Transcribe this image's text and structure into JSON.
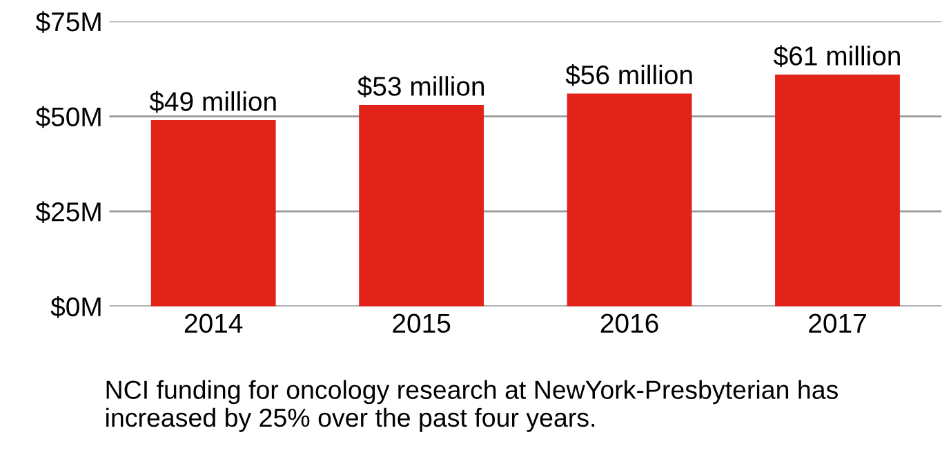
{
  "chart_data": {
    "type": "bar",
    "categories": [
      "2014",
      "2015",
      "2016",
      "2017"
    ],
    "values": [
      49,
      53,
      56,
      61
    ],
    "value_labels": [
      "$49 million",
      "$53 million",
      "$56 million",
      "$61 million"
    ],
    "color": "#e2231a",
    "ylim": [
      0,
      75
    ],
    "yticks": [
      {
        "value": 0,
        "label": "$0M"
      },
      {
        "value": 25,
        "label": "$25M"
      },
      {
        "value": 50,
        "label": "$50M"
      },
      {
        "value": 75,
        "label": "$75M"
      }
    ],
    "grid": "y",
    "annotations": [
      "NCI funding for oncology research at NewYork-Presbyterian has increased by 25% over the past four years."
    ]
  }
}
